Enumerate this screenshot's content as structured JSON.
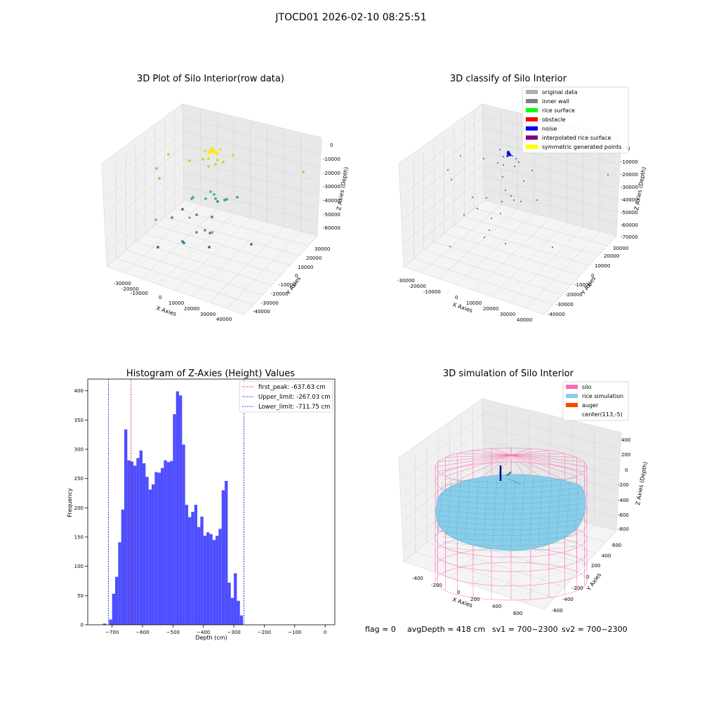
{
  "figure": {
    "suptitle": "JTOCD01 2026-02-10 08:25:51",
    "footer": {
      "flag": "flag = 0",
      "avg_depth": "avgDepth = 418 cm",
      "sv1": "sv1 = 700~2300",
      "sv2": "sv2 = 700~2300"
    }
  },
  "chart_data": [
    {
      "type": "scatter",
      "projection": "3d",
      "title": "3D Plot of Silo Interior(row data)",
      "xlabel": "X Axies",
      "ylabel": "Y Axies",
      "zlabel": "Z Axies (Depth)",
      "x_ticks": [
        "-30000",
        "-20000",
        "-10000",
        "0",
        "10000",
        "20000",
        "30000",
        "40000"
      ],
      "y_ticks": [
        "-40000",
        "-30000",
        "-20000",
        "-10000",
        "0",
        "10000",
        "20000",
        "30000"
      ],
      "z_ticks": [
        "0",
        "-10000",
        "-20000",
        "-30000",
        "-40000",
        "-50000",
        "-60000"
      ],
      "colormap": "viridis",
      "grid": true
    },
    {
      "type": "scatter",
      "projection": "3d",
      "title": "3D classify of Silo Interior",
      "xlabel": "X Axies",
      "ylabel": "Y Axies",
      "zlabel": "Z Axies (Depth)",
      "x_ticks": [
        "-30000",
        "-20000",
        "-10000",
        "0",
        "10000",
        "20000",
        "30000",
        "40000"
      ],
      "y_ticks": [
        "-40000",
        "-30000",
        "-20000",
        "-10000",
        "0",
        "10000",
        "20000",
        "30000"
      ],
      "z_ticks": [
        "0",
        "-10000",
        "-20000",
        "-30000",
        "-40000",
        "-50000",
        "-60000",
        "-70000"
      ],
      "legend_position": "top-right",
      "legend": [
        {
          "label": "original data",
          "color": "#b0b0b0"
        },
        {
          "label": "inner wall",
          "color": "#808080"
        },
        {
          "label": "rice surface",
          "color": "#00ff00"
        },
        {
          "label": "obstacle",
          "color": "#ff0000"
        },
        {
          "label": "noise",
          "color": "#0000ff"
        },
        {
          "label": "interpolated rice surface",
          "color": "#800080"
        },
        {
          "label": "symmetric generated points",
          "color": "#ffff00"
        }
      ],
      "grid": true
    },
    {
      "type": "bar",
      "title": "Histogram of Z-Axies (Height) Values",
      "xlabel": "Depth (cm)",
      "ylabel": "Frequency",
      "xlim": [
        -780,
        32
      ],
      "ylim": [
        0,
        420
      ],
      "x_ticks": [
        -700,
        -600,
        -500,
        -400,
        -300,
        -200,
        -100,
        0
      ],
      "y_ticks": [
        0,
        50,
        100,
        150,
        200,
        250,
        300,
        350,
        400
      ],
      "bin_start": -730,
      "bin_width": 10,
      "values": [
        2,
        0,
        9,
        53,
        82,
        141,
        197,
        334,
        281,
        279,
        272,
        285,
        298,
        276,
        253,
        231,
        240,
        261,
        260,
        268,
        281,
        278,
        280,
        360,
        399,
        392,
        308,
        205,
        184,
        193,
        205,
        167,
        185,
        152,
        158,
        155,
        145,
        152,
        164,
        230,
        246,
        72,
        46,
        88,
        41,
        16
      ],
      "color": "#4a4aff",
      "vlines": [
        {
          "label": "first_peak: -637.63 cm",
          "x": -637.63,
          "color": "#ff0000"
        },
        {
          "label": "Upper_limit: -267.03 cm",
          "x": -267.03,
          "color": "#0000ff"
        },
        {
          "label": "Lower_limit: -711.75 cm",
          "x": -711.75,
          "color": "#0000ff"
        }
      ],
      "legend_position": "top-right",
      "grid": false
    },
    {
      "type": "surface",
      "projection": "3d",
      "title": "3D simulation of Silo Interior",
      "xlabel": "X Axies",
      "ylabel": "Y Axies",
      "zlabel": "Z Axies (Depth)",
      "x_ticks": [
        "-400",
        "-200",
        "0",
        "200",
        "400",
        "600"
      ],
      "y_ticks": [
        "-600",
        "-400",
        "-200",
        "0",
        "200",
        "400",
        "600"
      ],
      "z_ticks": [
        "400",
        "200",
        "0",
        "-200",
        "-400",
        "-600",
        "-800"
      ],
      "legend_position": "top-right",
      "legend": [
        {
          "label": "silo",
          "color": "#ff69b4"
        },
        {
          "label": "rice simulation",
          "color": "#87ceeb"
        },
        {
          "label": "auger",
          "color": "#ff4500"
        },
        {
          "label": "center(113,-5)",
          "color": "#ffffff"
        }
      ],
      "grid": true
    }
  ]
}
